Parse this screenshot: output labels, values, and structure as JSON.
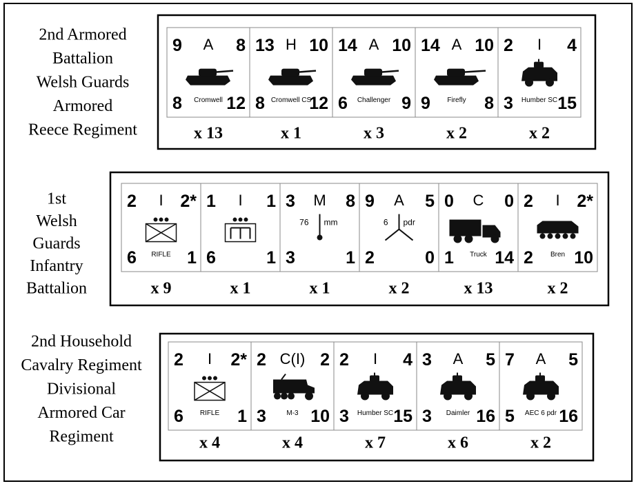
{
  "groups": [
    {
      "label": [
        "2nd Armored",
        "Battalion",
        "Welsh Guards",
        "Armored",
        "Reece Regiment"
      ],
      "units": [
        {
          "top_left": "9",
          "type": "A",
          "top_right": "8",
          "bottom_left": "8",
          "name": "Cromwell",
          "bottom_right": "12",
          "count": "x 13"
        },
        {
          "top_left": "13",
          "type": "H",
          "top_right": "10",
          "bottom_left": "8",
          "name": "Cromwell CS",
          "bottom_right": "12",
          "count": "x 1"
        },
        {
          "top_left": "14",
          "type": "A",
          "top_right": "10",
          "bottom_left": "6",
          "name": "Challenger",
          "bottom_right": "9",
          "count": "x 3"
        },
        {
          "top_left": "14",
          "type": "A",
          "top_right": "10",
          "bottom_left": "9",
          "name": "Firefly",
          "bottom_right": "8",
          "count": "x 2"
        },
        {
          "top_left": "2",
          "type": "I",
          "top_right": "4",
          "bottom_left": "3",
          "name": "Humber SC",
          "bottom_right": "15",
          "count": "x 2"
        }
      ]
    },
    {
      "label": [
        "1st",
        "Welsh",
        "Guards",
        "Infantry",
        "Battalion"
      ],
      "units": [
        {
          "top_left": "2",
          "type": "I",
          "top_right": "2*",
          "bottom_left": "6",
          "name": "RIFLE",
          "bottom_right": "1",
          "count": "x 9"
        },
        {
          "top_left": "1",
          "type": "I",
          "top_right": "1",
          "bottom_left": "6",
          "bottom_right": "1",
          "count": "x 1"
        },
        {
          "top_left": "3",
          "type": "M",
          "top_right": "8",
          "bottom_left": "3",
          "caliber": "76",
          "caliber_unit": "mm",
          "bottom_right": "1",
          "count": "x 1"
        },
        {
          "top_left": "9",
          "type": "A",
          "top_right": "5",
          "bottom_left": "2",
          "caliber": "6",
          "caliber_unit": "pdr",
          "bottom_right": "0",
          "count": "x 2"
        },
        {
          "top_left": "0",
          "type": "C",
          "top_right": "0",
          "bottom_left": "1",
          "name": "Truck",
          "bottom_right": "14",
          "count": "x 13"
        },
        {
          "top_left": "2",
          "type": "I",
          "top_right": "2*",
          "bottom_left": "2",
          "name": "Bren",
          "bottom_right": "10",
          "count": "x 2"
        }
      ]
    },
    {
      "label": [
        "2nd Household",
        "Cavalry Regiment",
        "Divisional",
        "Armored Car",
        "Regiment"
      ],
      "units": [
        {
          "top_left": "2",
          "type": "I",
          "top_right": "2*",
          "bottom_left": "6",
          "name": "RIFLE",
          "bottom_right": "1",
          "count": "x 4"
        },
        {
          "top_left": "2",
          "type": "C(I)",
          "top_right": "2",
          "bottom_left": "3",
          "name": "M-3",
          "bottom_right": "10",
          "count": "x 4"
        },
        {
          "top_left": "2",
          "type": "I",
          "top_right": "4",
          "bottom_left": "3",
          "name": "Humber SC",
          "bottom_right": "15",
          "count": "x 7"
        },
        {
          "top_left": "3",
          "type": "A",
          "top_right": "5",
          "bottom_left": "3",
          "name": "Daimler",
          "bottom_right": "16",
          "count": "x 6"
        },
        {
          "top_left": "7",
          "type": "A",
          "top_right": "5",
          "bottom_left": "5",
          "name": "AEC 6 pdr",
          "bottom_right": "16",
          "count": "x 2"
        }
      ]
    }
  ]
}
